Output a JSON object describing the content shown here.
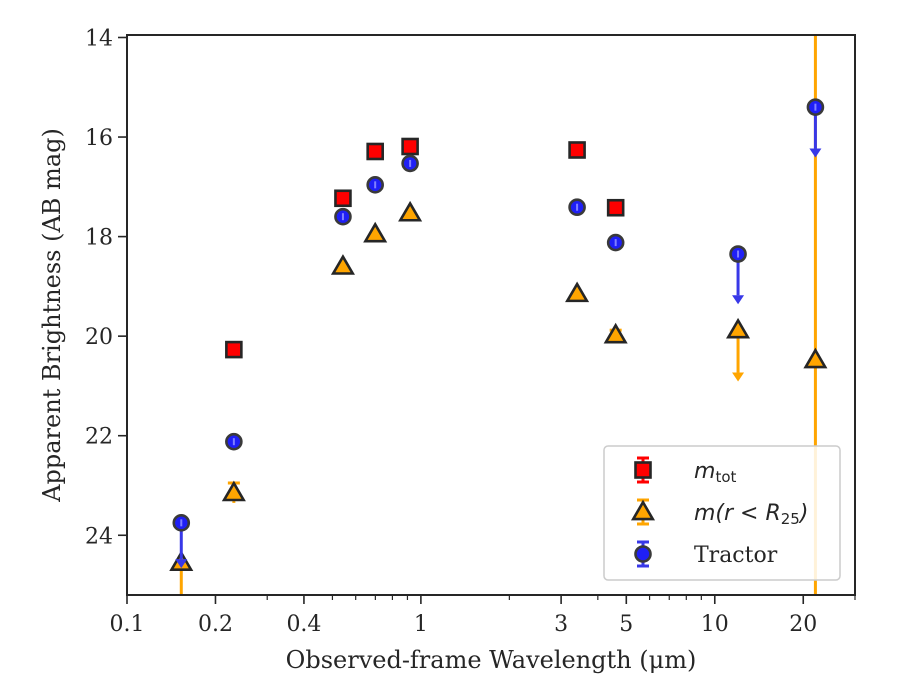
{
  "chart_data": {
    "type": "scatter",
    "xlabel": "Observed-frame Wavelength (μm)",
    "ylabel": "Apparent Brightness (AB mag)",
    "xscale": "log",
    "xlim": [
      0.1,
      30
    ],
    "ylim": [
      25.2,
      13.95
    ],
    "y_inverted": true,
    "x_ticks": [
      {
        "value": 0.1,
        "label": "0.1"
      },
      {
        "value": 0.2,
        "label": "0.2"
      },
      {
        "value": 0.4,
        "label": "0.4"
      },
      {
        "value": 1,
        "label": "1"
      },
      {
        "value": 3,
        "label": "3"
      },
      {
        "value": 5,
        "label": "5"
      },
      {
        "value": 10,
        "label": "10"
      },
      {
        "value": 20,
        "label": "20"
      }
    ],
    "y_ticks": [
      {
        "value": 14,
        "label": "14"
      },
      {
        "value": 16,
        "label": "16"
      },
      {
        "value": 18,
        "label": "18"
      },
      {
        "value": 20,
        "label": "20"
      },
      {
        "value": 22,
        "label": "22"
      },
      {
        "value": 24,
        "label": "24"
      }
    ],
    "grid": false,
    "legend_position": "lower-right",
    "colors": {
      "m_tot": "#ff0000",
      "m_r25": "#ffa500",
      "tractor": "#1f1ff5",
      "tractor_errbar": "#3838e8",
      "edge": "#262626"
    },
    "series": [
      {
        "name": "m_tot",
        "legend_base": "m",
        "legend_sub": "tot",
        "marker": "square",
        "points": [
          {
            "x": 0.231,
            "y": 20.27
          },
          {
            "x": 0.543,
            "y": 17.23
          },
          {
            "x": 0.699,
            "y": 16.29
          },
          {
            "x": 0.919,
            "y": 16.19
          },
          {
            "x": 3.4,
            "y": 16.26
          },
          {
            "x": 4.6,
            "y": 17.42
          }
        ]
      },
      {
        "name": "m(r < R25)",
        "legend_base": "m(r < R",
        "legend_sub": "25",
        "legend_close": ")",
        "marker": "triangle",
        "points": [
          {
            "x": 0.153,
            "y": 24.55,
            "lower_err": 0.8
          },
          {
            "x": 0.231,
            "y": 23.15,
            "err": 0.2
          },
          {
            "x": 0.543,
            "y": 18.6
          },
          {
            "x": 0.699,
            "y": 17.95
          },
          {
            "x": 0.919,
            "y": 17.53
          },
          {
            "x": 3.4,
            "y": 19.15
          },
          {
            "x": 4.6,
            "y": 19.98,
            "err": 0.1
          },
          {
            "x": 12,
            "y": 19.88,
            "upper_limit": true,
            "arrow_to": 20.85
          },
          {
            "x": 22,
            "y": 20.48,
            "full_span": true
          }
        ]
      },
      {
        "name": "Tractor",
        "legend_label": "Tractor",
        "marker": "circle",
        "points": [
          {
            "x": 0.153,
            "y": 23.75,
            "upper_limit": true,
            "arrow_to": 24.6
          },
          {
            "x": 0.231,
            "y": 22.12
          },
          {
            "x": 0.543,
            "y": 17.6
          },
          {
            "x": 0.699,
            "y": 16.96
          },
          {
            "x": 0.919,
            "y": 16.53
          },
          {
            "x": 3.4,
            "y": 17.41
          },
          {
            "x": 4.6,
            "y": 18.12
          },
          {
            "x": 12,
            "y": 18.35,
            "upper_limit": true,
            "arrow_to": 19.3
          },
          {
            "x": 22,
            "y": 15.4,
            "upper_limit": true,
            "arrow_to": 16.35
          }
        ]
      }
    ]
  }
}
